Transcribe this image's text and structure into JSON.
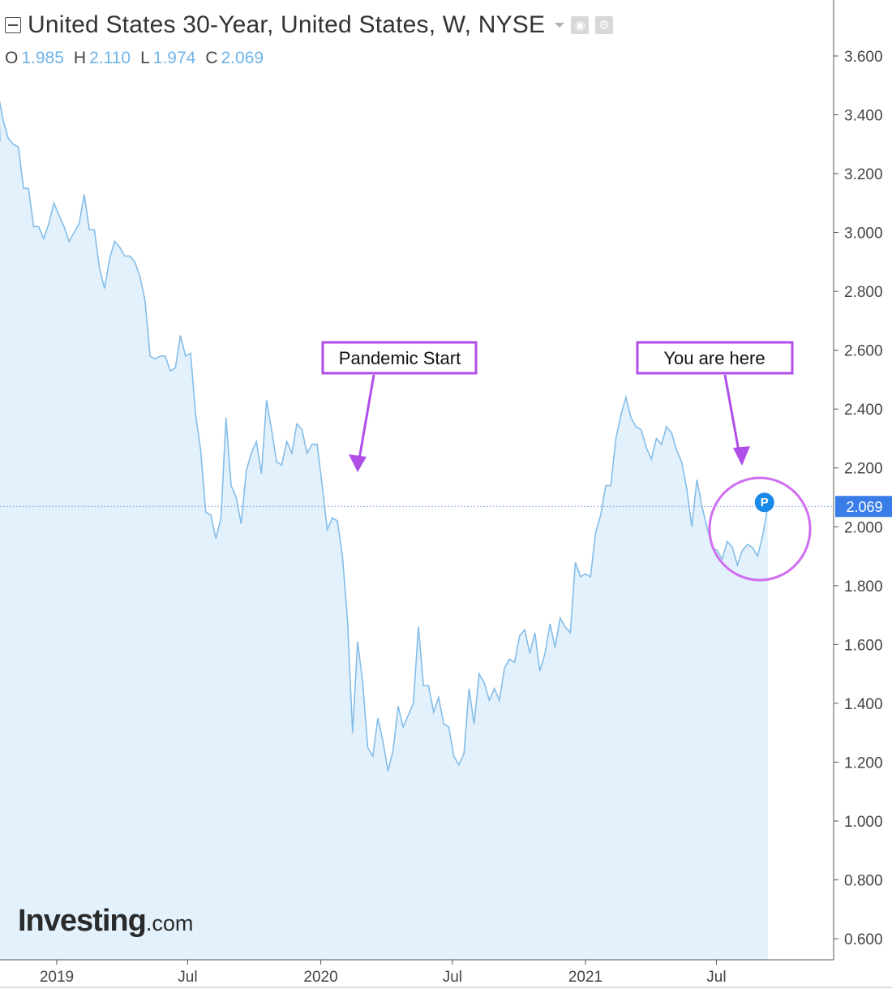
{
  "header": {
    "title": "United States 30-Year, United States, W, NYSE",
    "ohlc": [
      {
        "label": "O",
        "value": "1.985"
      },
      {
        "label": "H",
        "value": "2.110"
      },
      {
        "label": "L",
        "value": "1.974"
      },
      {
        "label": "C",
        "value": "2.069"
      }
    ]
  },
  "logo": {
    "main": "Investing",
    "suffix": ".com"
  },
  "chart_data": {
    "type": "area",
    "title": "United States 30-Year, United States, W, NYSE",
    "x_ticks": [
      "2019",
      "Jul",
      "2020",
      "Jul",
      "2021",
      "Jul"
    ],
    "y_ticks": [
      "3.600",
      "3.400",
      "3.200",
      "3.000",
      "2.800",
      "2.600",
      "2.400",
      "2.200",
      "2.000",
      "1.800",
      "1.600",
      "1.400",
      "1.200",
      "1.000",
      "0.800",
      "0.600"
    ],
    "ylim": [
      0.56,
      3.83
    ],
    "current_value": "2.069",
    "marker_label": "P",
    "colors": {
      "line": "#85bde8",
      "fill": "#e2f1fb",
      "price_tag": "#3a7de8",
      "annotation": "#b04ee8"
    },
    "annotations": [
      {
        "text": "Pandemic Start",
        "date": "2020-02-28"
      },
      {
        "text": "You are here",
        "date": "2021-08-22"
      }
    ],
    "series": [
      {
        "values": [
          [
            "2018-10-05",
            3.31
          ],
          [
            "2018-10-12",
            3.47
          ],
          [
            "2018-10-19",
            3.38
          ],
          [
            "2018-10-26",
            3.32
          ],
          [
            "2018-11-02",
            3.3
          ],
          [
            "2018-11-09",
            3.29
          ],
          [
            "2018-11-16",
            3.15
          ],
          [
            "2018-11-23",
            3.15
          ],
          [
            "2018-11-30",
            3.02
          ],
          [
            "2018-12-07",
            3.02
          ],
          [
            "2018-12-14",
            2.98
          ],
          [
            "2018-12-21",
            3.03
          ],
          [
            "2018-12-28",
            3.1
          ],
          [
            "2019-01-04",
            3.06
          ],
          [
            "2019-01-11",
            3.02
          ],
          [
            "2019-01-18",
            2.97
          ],
          [
            "2019-01-25",
            3.0
          ],
          [
            "2019-02-01",
            3.03
          ],
          [
            "2019-02-08",
            3.13
          ],
          [
            "2019-02-15",
            3.01
          ],
          [
            "2019-02-22",
            3.01
          ],
          [
            "2019-03-01",
            2.88
          ],
          [
            "2019-03-08",
            2.81
          ],
          [
            "2019-03-15",
            2.91
          ],
          [
            "2019-03-22",
            2.97
          ],
          [
            "2019-03-29",
            2.95
          ],
          [
            "2019-04-05",
            2.92
          ],
          [
            "2019-04-12",
            2.92
          ],
          [
            "2019-04-19",
            2.9
          ],
          [
            "2019-04-26",
            2.85
          ],
          [
            "2019-05-03",
            2.77
          ],
          [
            "2019-05-10",
            2.58
          ],
          [
            "2019-05-17",
            2.57
          ],
          [
            "2019-05-24",
            2.58
          ],
          [
            "2019-05-31",
            2.58
          ],
          [
            "2019-06-07",
            2.53
          ],
          [
            "2019-06-14",
            2.54
          ],
          [
            "2019-06-21",
            2.65
          ],
          [
            "2019-06-28",
            2.58
          ],
          [
            "2019-07-05",
            2.59
          ],
          [
            "2019-07-12",
            2.38
          ],
          [
            "2019-07-19",
            2.26
          ],
          [
            "2019-07-26",
            2.05
          ],
          [
            "2019-08-02",
            2.04
          ],
          [
            "2019-08-09",
            1.96
          ],
          [
            "2019-08-16",
            2.03
          ],
          [
            "2019-08-23",
            2.37
          ],
          [
            "2019-08-30",
            2.14
          ],
          [
            "2019-09-06",
            2.1
          ],
          [
            "2019-09-13",
            2.01
          ],
          [
            "2019-09-20",
            2.19
          ],
          [
            "2019-09-27",
            2.25
          ],
          [
            "2019-10-04",
            2.29
          ],
          [
            "2019-10-11",
            2.18
          ],
          [
            "2019-10-18",
            2.43
          ],
          [
            "2019-10-25",
            2.33
          ],
          [
            "2019-11-01",
            2.22
          ],
          [
            "2019-11-08",
            2.21
          ],
          [
            "2019-11-15",
            2.29
          ],
          [
            "2019-11-22",
            2.25
          ],
          [
            "2019-11-29",
            2.35
          ],
          [
            "2019-12-06",
            2.33
          ],
          [
            "2019-12-13",
            2.25
          ],
          [
            "2019-12-20",
            2.28
          ],
          [
            "2019-12-27",
            2.28
          ],
          [
            "2020-01-03",
            2.14
          ],
          [
            "2020-01-10",
            1.99
          ],
          [
            "2020-01-17",
            2.03
          ],
          [
            "2020-01-24",
            2.02
          ],
          [
            "2020-01-31",
            1.9
          ],
          [
            "2020-02-07",
            1.68
          ],
          [
            "2020-02-14",
            1.3
          ],
          [
            "2020-02-21",
            1.61
          ],
          [
            "2020-02-28",
            1.47
          ],
          [
            "2020-03-06",
            1.25
          ],
          [
            "2020-03-13",
            1.22
          ],
          [
            "2020-03-20",
            1.35
          ],
          [
            "2020-03-27",
            1.27
          ],
          [
            "2020-04-03",
            1.17
          ],
          [
            "2020-04-10",
            1.24
          ],
          [
            "2020-04-17",
            1.39
          ],
          [
            "2020-04-24",
            1.32
          ],
          [
            "2020-05-01",
            1.36
          ],
          [
            "2020-05-08",
            1.4
          ],
          [
            "2020-05-15",
            1.66
          ],
          [
            "2020-05-22",
            1.46
          ],
          [
            "2020-05-29",
            1.46
          ],
          [
            "2020-06-05",
            1.37
          ],
          [
            "2020-06-12",
            1.42
          ],
          [
            "2020-06-19",
            1.33
          ],
          [
            "2020-06-26",
            1.32
          ],
          [
            "2020-07-03",
            1.22
          ],
          [
            "2020-07-10",
            1.19
          ],
          [
            "2020-07-17",
            1.23
          ],
          [
            "2020-07-24",
            1.45
          ],
          [
            "2020-07-31",
            1.33
          ],
          [
            "2020-08-07",
            1.5
          ],
          [
            "2020-08-14",
            1.47
          ],
          [
            "2020-08-21",
            1.41
          ],
          [
            "2020-08-28",
            1.45
          ],
          [
            "2020-09-04",
            1.41
          ],
          [
            "2020-09-11",
            1.52
          ],
          [
            "2020-09-18",
            1.55
          ],
          [
            "2020-09-25",
            1.54
          ],
          [
            "2020-10-02",
            1.63
          ],
          [
            "2020-10-09",
            1.65
          ],
          [
            "2020-10-16",
            1.57
          ],
          [
            "2020-10-23",
            1.64
          ],
          [
            "2020-10-30",
            1.51
          ],
          [
            "2020-11-06",
            1.57
          ],
          [
            "2020-11-13",
            1.67
          ],
          [
            "2020-11-20",
            1.59
          ],
          [
            "2020-11-27",
            1.69
          ],
          [
            "2020-12-04",
            1.66
          ],
          [
            "2020-12-11",
            1.64
          ],
          [
            "2020-12-18",
            1.88
          ],
          [
            "2020-12-25",
            1.83
          ],
          [
            "2021-01-01",
            1.84
          ],
          [
            "2021-01-08",
            1.83
          ],
          [
            "2021-01-15",
            1.98
          ],
          [
            "2021-01-22",
            2.04
          ],
          [
            "2021-01-29",
            2.14
          ],
          [
            "2021-02-05",
            2.14
          ],
          [
            "2021-02-12",
            2.3
          ],
          [
            "2021-02-19",
            2.38
          ],
          [
            "2021-02-26",
            2.44
          ],
          [
            "2021-03-05",
            2.37
          ],
          [
            "2021-03-12",
            2.34
          ],
          [
            "2021-03-19",
            2.33
          ],
          [
            "2021-03-26",
            2.27
          ],
          [
            "2021-04-02",
            2.23
          ],
          [
            "2021-04-09",
            2.3
          ],
          [
            "2021-04-16",
            2.28
          ],
          [
            "2021-04-23",
            2.34
          ],
          [
            "2021-04-30",
            2.32
          ],
          [
            "2021-05-07",
            2.26
          ],
          [
            "2021-05-14",
            2.22
          ],
          [
            "2021-05-21",
            2.13
          ],
          [
            "2021-05-28",
            2.0
          ],
          [
            "2021-06-04",
            2.16
          ],
          [
            "2021-06-11",
            2.07
          ],
          [
            "2021-06-18",
            2.0
          ],
          [
            "2021-06-25",
            1.93
          ],
          [
            "2021-07-02",
            1.92
          ],
          [
            "2021-07-09",
            1.89
          ],
          [
            "2021-07-16",
            1.95
          ],
          [
            "2021-07-23",
            1.93
          ],
          [
            "2021-07-30",
            1.87
          ],
          [
            "2021-08-06",
            1.92
          ],
          [
            "2021-08-13",
            1.94
          ],
          [
            "2021-08-20",
            1.93
          ],
          [
            "2021-08-27",
            1.9
          ],
          [
            "2021-09-03",
            1.97
          ],
          [
            "2021-09-10",
            2.069
          ]
        ]
      }
    ]
  }
}
